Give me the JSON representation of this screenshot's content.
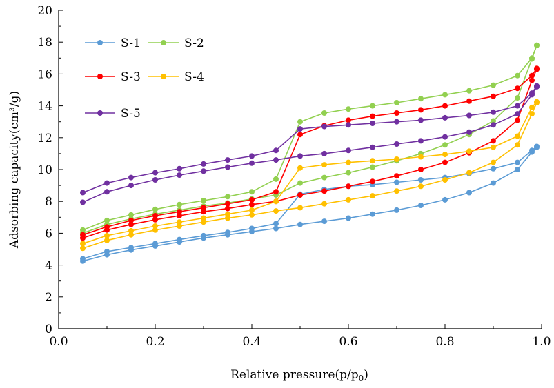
{
  "chart_data": {
    "type": "line",
    "xlabel": "Relative pressure(p/p",
    "xlabel_sub": "0",
    "xlabel_suffix": ")",
    "ylabel": "Adsorbing capacity(cm³/g)",
    "xlim": [
      0.0,
      1.0
    ],
    "ylim": [
      0,
      20
    ],
    "xticks": [
      "0.0",
      "0.2",
      "0.4",
      "0.6",
      "0.8",
      "1.0"
    ],
    "yticks": [
      "0",
      "2",
      "4",
      "6",
      "8",
      "10",
      "12",
      "14",
      "16",
      "18",
      "20"
    ],
    "grid": false,
    "legend_position": "top-left",
    "x": [
      0.05,
      0.1,
      0.15,
      0.2,
      0.25,
      0.3,
      0.35,
      0.4,
      0.45,
      0.5,
      0.55,
      0.6,
      0.65,
      0.7,
      0.75,
      0.8,
      0.85,
      0.9,
      0.95,
      0.98,
      0.99
    ],
    "series": [
      {
        "name": "S-1",
        "color": "#5b9bd5",
        "adsorption": [
          4.25,
          4.65,
          4.95,
          5.2,
          5.45,
          5.7,
          5.9,
          6.1,
          6.3,
          6.55,
          6.75,
          6.95,
          7.2,
          7.45,
          7.75,
          8.1,
          8.55,
          9.15,
          10.0,
          11.1,
          11.4
        ],
        "desorption": [
          4.4,
          4.85,
          5.1,
          5.35,
          5.6,
          5.85,
          6.05,
          6.3,
          6.6,
          8.45,
          8.75,
          8.95,
          9.05,
          9.2,
          9.35,
          9.5,
          9.75,
          10.05,
          10.45,
          11.2,
          11.45
        ]
      },
      {
        "name": "S-2",
        "color": "#92d050",
        "adsorption": [
          6.0,
          6.55,
          6.9,
          7.2,
          7.45,
          7.7,
          7.9,
          8.15,
          8.4,
          9.15,
          9.5,
          9.8,
          10.15,
          10.55,
          11.0,
          11.55,
          12.2,
          13.05,
          14.5,
          16.95,
          17.8
        ],
        "desorption": [
          6.2,
          6.8,
          7.15,
          7.5,
          7.8,
          8.05,
          8.3,
          8.6,
          9.4,
          13.0,
          13.55,
          13.8,
          14.0,
          14.2,
          14.45,
          14.7,
          14.95,
          15.3,
          15.9,
          17.0,
          17.8
        ]
      },
      {
        "name": "S-3",
        "color": "#ff0000",
        "adsorption": [
          5.7,
          6.2,
          6.55,
          6.85,
          7.1,
          7.35,
          7.55,
          7.8,
          8.0,
          8.4,
          8.65,
          8.95,
          9.25,
          9.6,
          10.0,
          10.45,
          11.05,
          11.8,
          13.1,
          15.6,
          16.3
        ],
        "desorption": [
          5.9,
          6.4,
          6.8,
          7.1,
          7.35,
          7.6,
          7.85,
          8.1,
          8.6,
          12.2,
          12.75,
          13.1,
          13.35,
          13.55,
          13.75,
          14.0,
          14.3,
          14.6,
          15.1,
          15.9,
          16.35
        ]
      },
      {
        "name": "S-4",
        "color": "#ffc000",
        "adsorption": [
          5.05,
          5.55,
          5.9,
          6.2,
          6.45,
          6.7,
          6.95,
          7.15,
          7.4,
          7.6,
          7.85,
          8.1,
          8.35,
          8.65,
          8.95,
          9.35,
          9.8,
          10.45,
          11.55,
          13.5,
          14.2
        ],
        "desorption": [
          5.35,
          5.85,
          6.15,
          6.45,
          6.7,
          6.95,
          7.2,
          7.45,
          8.0,
          10.1,
          10.3,
          10.45,
          10.55,
          10.65,
          10.8,
          10.95,
          11.15,
          11.4,
          12.1,
          13.9,
          14.25
        ]
      },
      {
        "name": "S-5",
        "color": "#7030a0",
        "adsorption": [
          7.95,
          8.6,
          9.0,
          9.35,
          9.65,
          9.9,
          10.15,
          10.4,
          10.6,
          10.85,
          11.0,
          11.2,
          11.4,
          11.6,
          11.8,
          12.05,
          12.35,
          12.8,
          13.5,
          14.7,
          15.2
        ],
        "desorption": [
          8.55,
          9.15,
          9.5,
          9.8,
          10.05,
          10.35,
          10.6,
          10.85,
          11.2,
          12.55,
          12.7,
          12.8,
          12.9,
          13.0,
          13.1,
          13.25,
          13.4,
          13.6,
          14.0,
          14.8,
          15.25
        ]
      }
    ]
  }
}
